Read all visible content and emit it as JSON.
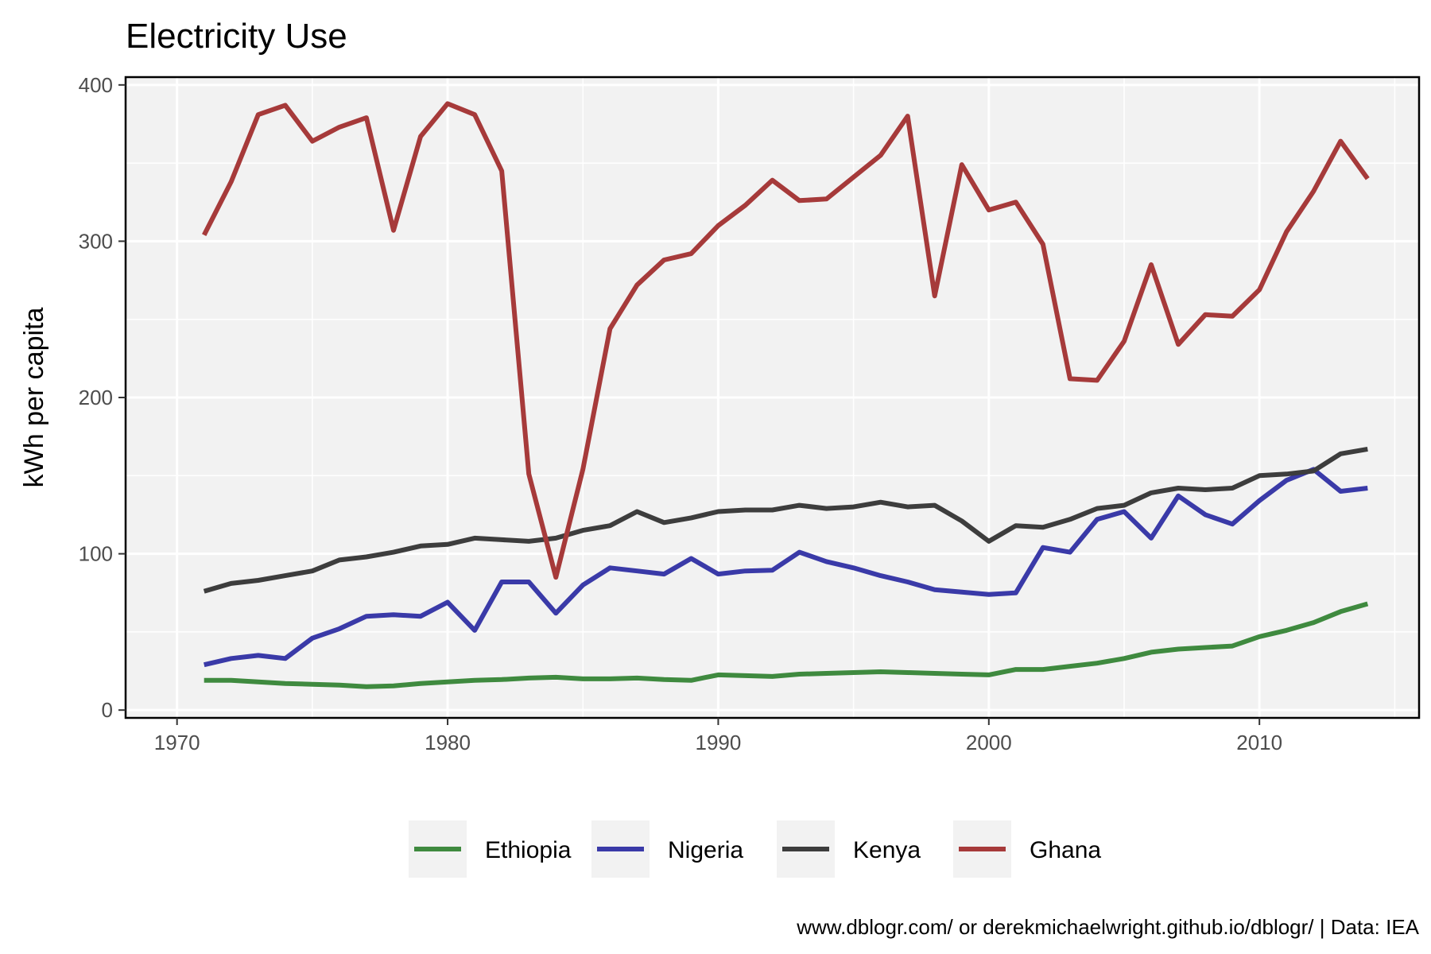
{
  "chart_data": {
    "type": "line",
    "title": "Electricity Use",
    "xlabel": "",
    "ylabel": "kWh per capita",
    "xlim": [
      1968.1,
      2015.9
    ],
    "ylim": [
      -5,
      405
    ],
    "x_ticks": [
      1970,
      1980,
      1990,
      2000,
      2010
    ],
    "y_ticks": [
      0,
      100,
      200,
      300,
      400
    ],
    "grid": true,
    "legend_position": "bottom",
    "caption": "www.dblogr.com/ or derekmichaelwright.github.io/dblogr/ | Data: IEA",
    "x": [
      1971,
      1972,
      1973,
      1974,
      1975,
      1976,
      1977,
      1978,
      1979,
      1980,
      1981,
      1982,
      1983,
      1984,
      1985,
      1986,
      1987,
      1988,
      1989,
      1990,
      1991,
      1992,
      1993,
      1994,
      1995,
      1996,
      1997,
      1998,
      1999,
      2000,
      2001,
      2002,
      2003,
      2004,
      2005,
      2006,
      2007,
      2008,
      2009,
      2010,
      2011,
      2012,
      2013,
      2014
    ],
    "series": [
      {
        "name": "Ethiopia",
        "color": "#3f8a3f",
        "values": [
          19,
          19,
          18,
          17,
          16.5,
          16,
          15,
          15.5,
          17,
          18,
          19,
          19.5,
          20.5,
          21,
          20,
          20,
          20.5,
          19.5,
          19,
          22.5,
          22,
          21.5,
          23,
          23.5,
          24,
          24.5,
          24,
          23.5,
          23,
          22.5,
          26,
          26,
          28,
          30,
          33,
          37,
          39,
          40,
          41,
          47,
          51,
          56,
          63,
          68
        ]
      },
      {
        "name": "Nigeria",
        "color": "#3a3aa8",
        "values": [
          29,
          33,
          35,
          33,
          46,
          52,
          60,
          61,
          60,
          69,
          51,
          82,
          82,
          62,
          80,
          91,
          89,
          87,
          97,
          87,
          89,
          89.5,
          101,
          95,
          91,
          86,
          82,
          77,
          75.5,
          74,
          75,
          104,
          101,
          122,
          127,
          110,
          137,
          125,
          119,
          134,
          147,
          154,
          140,
          142
        ]
      },
      {
        "name": "Kenya",
        "color": "#3d3d3d",
        "values": [
          76,
          81,
          83,
          86,
          89,
          96,
          98,
          101,
          105,
          106,
          110,
          109,
          108,
          110,
          115,
          118,
          127,
          120,
          123,
          127,
          128,
          128,
          131,
          129,
          130,
          133,
          130,
          131,
          121,
          108,
          118,
          117,
          122,
          129,
          131,
          139,
          142,
          141,
          142,
          150,
          151,
          153,
          164,
          167
        ]
      },
      {
        "name": "Ghana",
        "color": "#a63a3a",
        "values": [
          304,
          338,
          381,
          387,
          364,
          373,
          379,
          307,
          367,
          388,
          381,
          345,
          151,
          85,
          154,
          244,
          272,
          288,
          292,
          310,
          323,
          339,
          326,
          327,
          341,
          355,
          380,
          265,
          349,
          320,
          325,
          298,
          212,
          211,
          236,
          285,
          234,
          253,
          252,
          269,
          306,
          332,
          364,
          340
        ]
      }
    ]
  }
}
